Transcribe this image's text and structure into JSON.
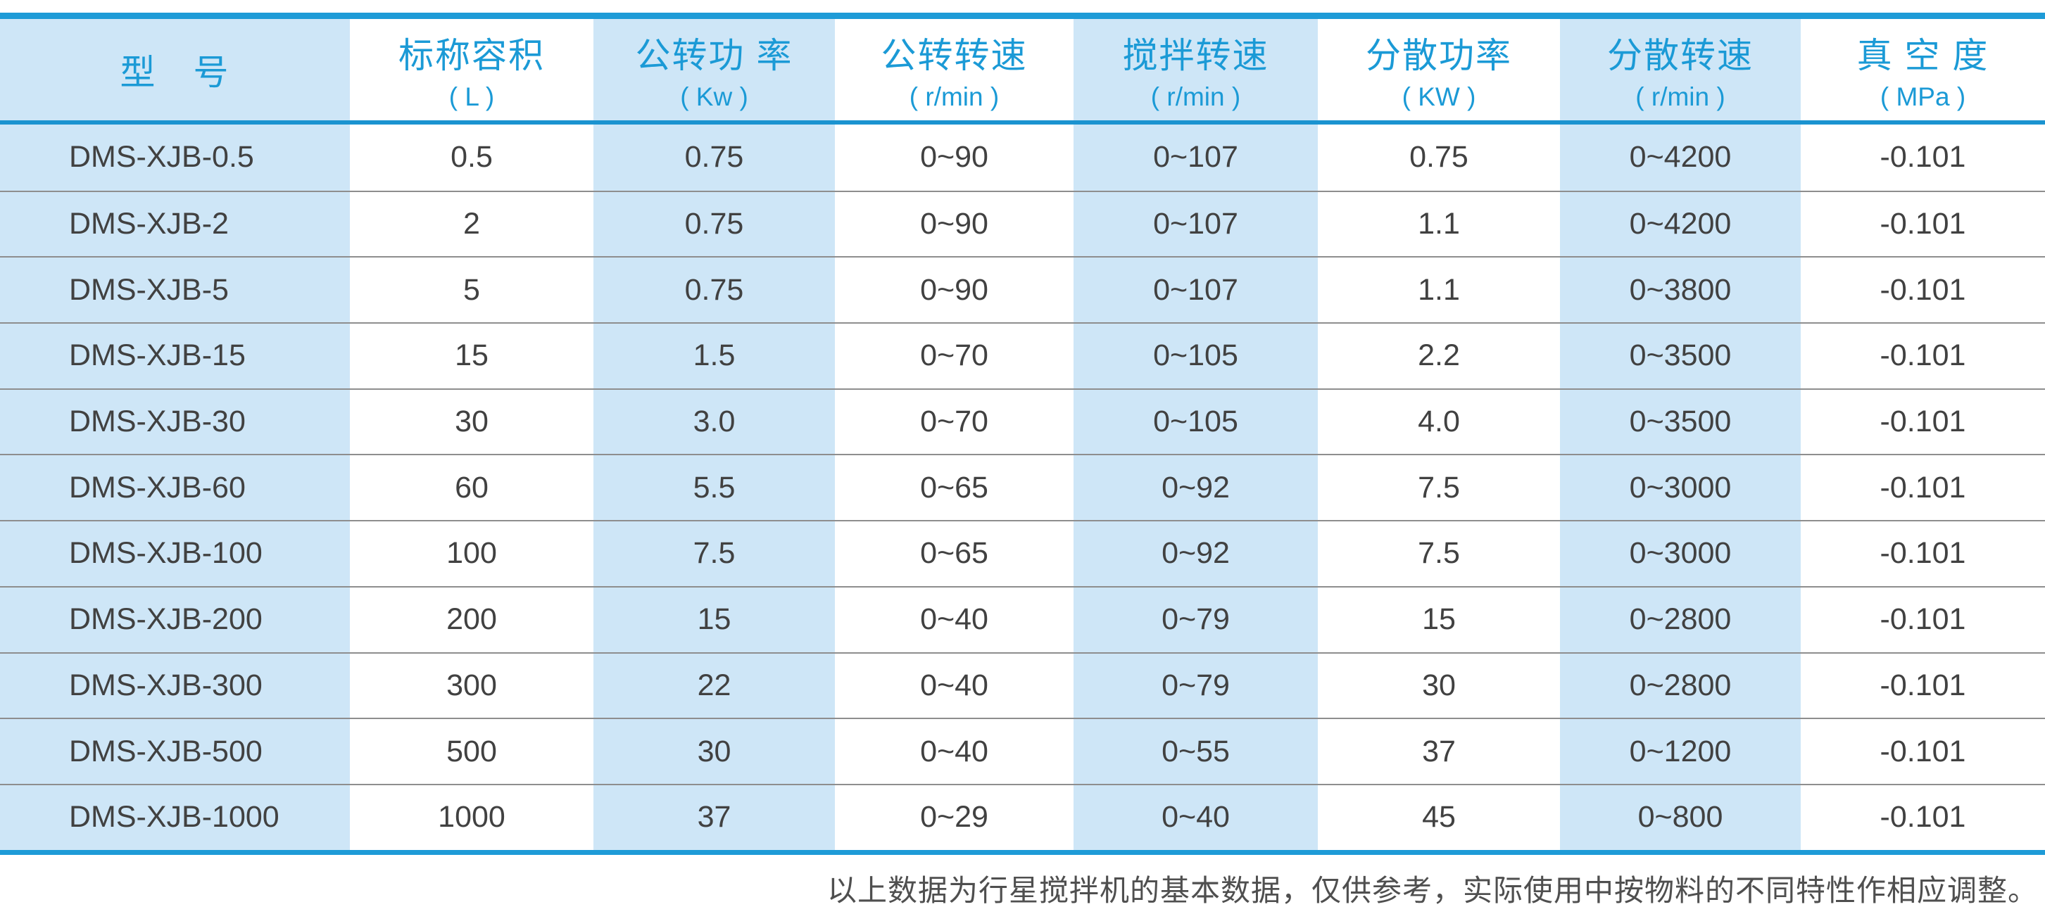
{
  "colors": {
    "accent_blue_rule": "#1E9BD7",
    "header_text_blue": "#1B9AD6",
    "column_stripe_blue": "#CEE6F7",
    "body_text_gray": "#414141",
    "row_separator_gray": "#8E8E8E",
    "footnote_gray": "#4F4F4F"
  },
  "table": {
    "columns": [
      {
        "title": "型　号",
        "unit": ""
      },
      {
        "title": "标称容积",
        "unit": "( L )"
      },
      {
        "title": "公转功 率",
        "unit": "( Kw )"
      },
      {
        "title": "公转转速",
        "unit": "( r/min )"
      },
      {
        "title": "搅拌转速",
        "unit": "( r/min )"
      },
      {
        "title": "分散功率",
        "unit": "( KW )"
      },
      {
        "title": "分散转速",
        "unit": "( r/min )"
      },
      {
        "title": "真 空 度",
        "unit": "( MPa )"
      }
    ],
    "rows": [
      {
        "model": "DMS-XJB-0.5",
        "values": [
          "0.5",
          "0.75",
          "0~90",
          "0~107",
          "0.75",
          "0~4200",
          "-0.101"
        ]
      },
      {
        "model": "DMS-XJB-2",
        "values": [
          "2",
          "0.75",
          "0~90",
          "0~107",
          "1.1",
          "0~4200",
          "-0.101"
        ]
      },
      {
        "model": "DMS-XJB-5",
        "values": [
          "5",
          "0.75",
          "0~90",
          "0~107",
          "1.1",
          "0~3800",
          "-0.101"
        ]
      },
      {
        "model": "DMS-XJB-15",
        "values": [
          "15",
          "1.5",
          "0~70",
          "0~105",
          "2.2",
          "0~3500",
          "-0.101"
        ]
      },
      {
        "model": "DMS-XJB-30",
        "values": [
          "30",
          "3.0",
          "0~70",
          "0~105",
          "4.0",
          "0~3500",
          "-0.101"
        ]
      },
      {
        "model": "DMS-XJB-60",
        "values": [
          "60",
          "5.5",
          "0~65",
          "0~92",
          "7.5",
          "0~3000",
          "-0.101"
        ]
      },
      {
        "model": "DMS-XJB-100",
        "values": [
          "100",
          "7.5",
          "0~65",
          "0~92",
          "7.5",
          "0~3000",
          "-0.101"
        ]
      },
      {
        "model": "DMS-XJB-200",
        "values": [
          "200",
          "15",
          "0~40",
          "0~79",
          "15",
          "0~2800",
          "-0.101"
        ]
      },
      {
        "model": "DMS-XJB-300",
        "values": [
          "300",
          "22",
          "0~40",
          "0~79",
          "30",
          "0~2800",
          "-0.101"
        ]
      },
      {
        "model": "DMS-XJB-500",
        "values": [
          "500",
          "30",
          "0~40",
          "0~55",
          "37",
          "0~1200",
          "-0.101"
        ]
      },
      {
        "model": "DMS-XJB-1000",
        "values": [
          "1000",
          "37",
          "0~29",
          "0~40",
          "45",
          "0~800",
          "-0.101"
        ]
      }
    ]
  },
  "footer": {
    "note": "以上数据为行星搅拌机的基本数据，仅供参考，实际使用中按物料的不同特性作相应调整。"
  }
}
